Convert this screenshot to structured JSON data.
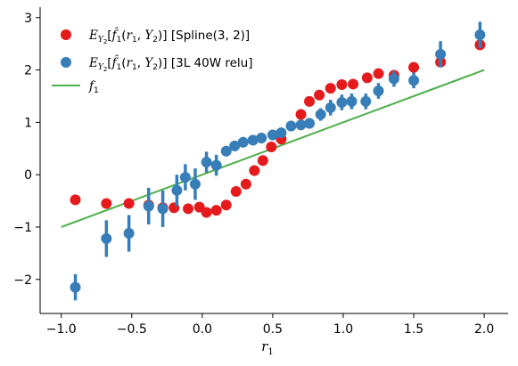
{
  "chart_data": {
    "type": "scatter",
    "xlabel": "r",
    "xlabel_sub": "1",
    "xlim": [
      -1.15,
      2.17
    ],
    "ylim": [
      -2.65,
      3.2
    ],
    "xticks": [
      -1.0,
      -0.5,
      0.0,
      0.5,
      1.0,
      1.5,
      2.0
    ],
    "xtick_labels": [
      "−1.0",
      "−0.5",
      "0.0",
      "0.5",
      "1.0",
      "1.5",
      "2.0"
    ],
    "yticks": [
      -2,
      -1,
      0,
      1,
      2,
      3
    ],
    "ytick_labels": [
      "−2",
      "−1",
      "0",
      "1",
      "2",
      "3"
    ],
    "legend_position": "top-left",
    "series": [
      {
        "name": "E_{Y₂}[f̂₁(r₁, Y₂)] [Spline(3, 2)]",
        "legend_label": "[Spline(3, 2)]",
        "kind": "scatter_errorbar",
        "color": "#e41a1c",
        "points": [
          {
            "x": -0.9,
            "y": -0.48,
            "err": 0.0
          },
          {
            "x": -0.68,
            "y": -0.55,
            "err": 0.05
          },
          {
            "x": -0.52,
            "y": -0.55,
            "err": 0.04
          },
          {
            "x": -0.38,
            "y": -0.58,
            "err": 0.03
          },
          {
            "x": -0.28,
            "y": -0.63,
            "err": 0.02
          },
          {
            "x": -0.2,
            "y": -0.63,
            "err": 0.0
          },
          {
            "x": -0.1,
            "y": -0.65,
            "err": 0.0
          },
          {
            "x": -0.02,
            "y": -0.62,
            "err": 0.0
          },
          {
            "x": 0.03,
            "y": -0.72,
            "err": 0.0
          },
          {
            "x": 0.1,
            "y": -0.68,
            "err": 0.06
          },
          {
            "x": 0.17,
            "y": -0.58,
            "err": 0.0
          },
          {
            "x": 0.24,
            "y": -0.32,
            "err": 0.0
          },
          {
            "x": 0.31,
            "y": -0.18,
            "err": 0.0
          },
          {
            "x": 0.37,
            "y": 0.08,
            "err": 0.0
          },
          {
            "x": 0.43,
            "y": 0.27,
            "err": 0.0
          },
          {
            "x": 0.49,
            "y": 0.53,
            "err": 0.0
          },
          {
            "x": 0.56,
            "y": 0.68,
            "err": 0.0
          },
          {
            "x": 0.7,
            "y": 1.15,
            "err": 0.0
          },
          {
            "x": 0.76,
            "y": 1.4,
            "err": 0.0
          },
          {
            "x": 0.83,
            "y": 1.52,
            "err": 0.0
          },
          {
            "x": 0.91,
            "y": 1.65,
            "err": 0.0
          },
          {
            "x": 0.99,
            "y": 1.72,
            "err": 0.0
          },
          {
            "x": 1.07,
            "y": 1.73,
            "err": 0.0
          },
          {
            "x": 1.17,
            "y": 1.85,
            "err": 0.0
          },
          {
            "x": 1.25,
            "y": 1.93,
            "err": 0.0
          },
          {
            "x": 1.36,
            "y": 1.9,
            "err": 0.0
          },
          {
            "x": 1.5,
            "y": 2.05,
            "err": 0.0
          },
          {
            "x": 1.69,
            "y": 2.15,
            "err": 0.0
          },
          {
            "x": 1.97,
            "y": 2.48,
            "err": 0.0
          }
        ]
      },
      {
        "name": "E_{Y₂}[f̂₁(r₁, Y₂)] [3L 40W relu]",
        "legend_label": "[3L 40W relu]",
        "kind": "scatter_errorbar",
        "color": "#377eb8",
        "points": [
          {
            "x": -0.9,
            "y": -2.15,
            "err": 0.25
          },
          {
            "x": -0.68,
            "y": -1.22,
            "err": 0.35
          },
          {
            "x": -0.52,
            "y": -1.12,
            "err": 0.35
          },
          {
            "x": -0.38,
            "y": -0.6,
            "err": 0.35
          },
          {
            "x": -0.28,
            "y": -0.65,
            "err": 0.35
          },
          {
            "x": -0.18,
            "y": -0.3,
            "err": 0.3
          },
          {
            "x": -0.12,
            "y": -0.05,
            "err": 0.25
          },
          {
            "x": -0.05,
            "y": -0.18,
            "err": 0.3
          },
          {
            "x": 0.03,
            "y": 0.24,
            "err": 0.2
          },
          {
            "x": 0.1,
            "y": 0.18,
            "err": 0.2
          },
          {
            "x": 0.17,
            "y": 0.45,
            "err": 0.1
          },
          {
            "x": 0.23,
            "y": 0.55,
            "err": 0.1
          },
          {
            "x": 0.29,
            "y": 0.62,
            "err": 0.1
          },
          {
            "x": 0.36,
            "y": 0.66,
            "err": 0.1
          },
          {
            "x": 0.42,
            "y": 0.7,
            "err": 0.1
          },
          {
            "x": 0.5,
            "y": 0.76,
            "err": 0.1
          },
          {
            "x": 0.56,
            "y": 0.8,
            "err": 0.1
          },
          {
            "x": 0.63,
            "y": 0.93,
            "err": 0.1
          },
          {
            "x": 0.7,
            "y": 0.95,
            "err": 0.1
          },
          {
            "x": 0.76,
            "y": 0.98,
            "err": 0.1
          },
          {
            "x": 0.84,
            "y": 1.15,
            "err": 0.12
          },
          {
            "x": 0.91,
            "y": 1.28,
            "err": 0.15
          },
          {
            "x": 0.99,
            "y": 1.38,
            "err": 0.15
          },
          {
            "x": 1.06,
            "y": 1.4,
            "err": 0.15
          },
          {
            "x": 1.16,
            "y": 1.4,
            "err": 0.15
          },
          {
            "x": 1.25,
            "y": 1.6,
            "err": 0.15
          },
          {
            "x": 1.36,
            "y": 1.83,
            "err": 0.15
          },
          {
            "x": 1.5,
            "y": 1.8,
            "err": 0.15
          },
          {
            "x": 1.69,
            "y": 2.3,
            "err": 0.25
          },
          {
            "x": 1.97,
            "y": 2.67,
            "err": 0.25
          }
        ]
      },
      {
        "name": "f₁",
        "legend_label": "f",
        "legend_sub": "1",
        "kind": "line",
        "color": "#4daf4a",
        "x": [
          -1.0,
          2.0
        ],
        "y": [
          -1.0,
          2.0
        ]
      }
    ]
  }
}
